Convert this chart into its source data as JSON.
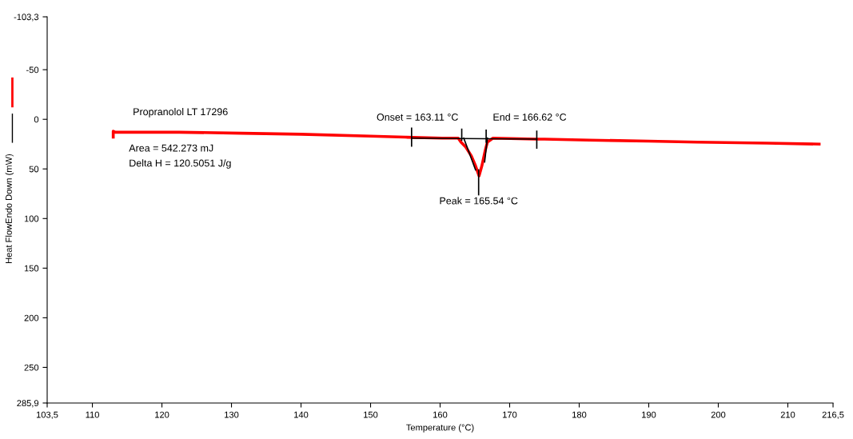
{
  "chart_data": {
    "type": "line",
    "xlabel": "Temperature (°C)",
    "ylabel": "Heat FlowEndo Down (mW)",
    "xlim": [
      103.5,
      216.5
    ],
    "ylim": [
      285.9,
      -103.3
    ],
    "xticks": [
      {
        "value": 103.5,
        "label": "103,5"
      },
      110,
      120,
      130,
      140,
      150,
      160,
      170,
      180,
      190,
      200,
      210,
      {
        "value": 216.5,
        "label": "216,5"
      }
    ],
    "yticks": [
      {
        "value": -103.3,
        "label": "-103,3"
      },
      -50,
      0,
      50,
      100,
      150,
      200,
      250,
      {
        "value": 285.9,
        "label": "285,9"
      }
    ],
    "grid": false,
    "annotations": [
      "Propranolol LT 17296",
      "Area = 542.273 mJ",
      "Delta H = 120.5051 J/g",
      {
        "text": "Onset = 163.11 °C",
        "x": 163.11,
        "y": 19
      },
      {
        "text": "End = 166.62 °C",
        "x": 166.62,
        "y": 19
      },
      {
        "text": "Peak = 165.54 °C",
        "x": 165.54,
        "y": 76
      }
    ],
    "series": [
      {
        "color": "#ff0000",
        "x": [
          113.0,
          113.0,
          113.3,
          122.5,
          131.5,
          140,
          150,
          155,
          160.3,
          162.6,
          163.0,
          163.7,
          164.5,
          165.1,
          165.6,
          166.0,
          166.5,
          166.8,
          167.6,
          173.9,
          175,
          181.5,
          190,
          197,
          207,
          214.5
        ],
        "values": [
          18,
          12,
          13,
          13,
          14,
          15,
          17,
          18,
          19,
          19,
          23,
          28,
          37,
          47,
          57,
          47,
          31,
          23,
          19,
          20,
          20,
          21,
          22,
          23,
          24,
          25
        ]
      },
      {
        "color": "#000000",
        "x": [
          155.9,
          173.9
        ],
        "values": [
          19,
          20
        ]
      },
      {
        "color": "#000000",
        "x": [
          163.4,
          165.1
        ],
        "values": [
          19,
          51
        ]
      },
      {
        "color": "#000000",
        "x": [
          166.8,
          166.4
        ],
        "values": [
          19,
          43
        ]
      },
      {
        "color": "#000000",
        "x": [
          155.9,
          155.9
        ],
        "values": [
          9,
          27
        ]
      },
      {
        "color": "#000000",
        "x": [
          163.11,
          163.11
        ],
        "values": [
          10,
          21
        ]
      },
      {
        "color": "#000000",
        "x": [
          166.62,
          166.62
        ],
        "values": [
          11,
          23
        ]
      },
      {
        "color": "#000000",
        "x": [
          173.9,
          173.9
        ],
        "values": [
          12,
          29
        ]
      },
      {
        "color": "#000000",
        "x": [
          165.54,
          165.54
        ],
        "values": [
          51,
          76
        ]
      }
    ]
  }
}
